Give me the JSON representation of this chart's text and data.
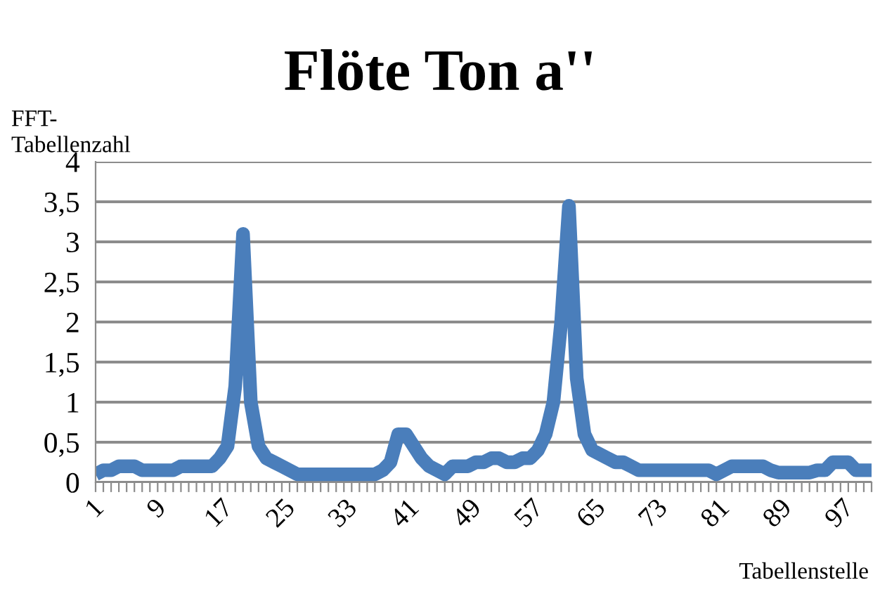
{
  "chart_data": {
    "type": "line",
    "title": "Flöte Ton a''",
    "xlabel": "Tabellenstelle",
    "ylabel": "FFT-\nTabellenzahl",
    "categories": [
      "1",
      null,
      null,
      null,
      null,
      null,
      null,
      null,
      "9",
      null,
      null,
      null,
      null,
      null,
      null,
      null,
      "17",
      null,
      null,
      null,
      null,
      null,
      null,
      null,
      "25",
      null,
      null,
      null,
      null,
      null,
      null,
      null,
      "33",
      null,
      null,
      null,
      null,
      null,
      null,
      null,
      "41",
      null,
      null,
      null,
      null,
      null,
      null,
      null,
      "49",
      null,
      null,
      null,
      null,
      null,
      null,
      null,
      "57",
      null,
      null,
      null,
      null,
      null,
      null,
      null,
      "65",
      null,
      null,
      null,
      null,
      null,
      null,
      null,
      "73",
      null,
      null,
      null,
      null,
      null,
      null,
      null,
      "81",
      null,
      null,
      null,
      null,
      null,
      null,
      null,
      "89",
      null,
      null,
      null,
      null,
      null,
      null,
      null,
      "97",
      null,
      null,
      null,
      null
    ],
    "series": [
      {
        "color": "#4a7ebb",
        "values": [
          0.1,
          0.15,
          0.15,
          0.2,
          0.2,
          0.2,
          0.15,
          0.15,
          0.15,
          0.15,
          0.15,
          0.2,
          0.2,
          0.2,
          0.2,
          0.2,
          0.3,
          0.45,
          1.2,
          3.1,
          1.0,
          0.45,
          0.3,
          0.25,
          0.2,
          0.15,
          0.1,
          0.1,
          0.1,
          0.1,
          0.1,
          0.1,
          0.1,
          0.1,
          0.1,
          0.1,
          0.1,
          0.15,
          0.25,
          0.6,
          0.6,
          0.45,
          0.3,
          0.2,
          0.15,
          0.1,
          0.2,
          0.2,
          0.2,
          0.25,
          0.25,
          0.3,
          0.3,
          0.25,
          0.25,
          0.3,
          0.3,
          0.4,
          0.6,
          1.0,
          2.0,
          3.45,
          1.3,
          0.6,
          0.4,
          0.35,
          0.3,
          0.25,
          0.25,
          0.2,
          0.15,
          0.15,
          0.15,
          0.15,
          0.15,
          0.15,
          0.15,
          0.15,
          0.15,
          0.15,
          0.1,
          0.15,
          0.2,
          0.2,
          0.2,
          0.2,
          0.2,
          0.15,
          0.12,
          0.12,
          0.12,
          0.12,
          0.12,
          0.15,
          0.15,
          0.25,
          0.25,
          0.25,
          0.15,
          0.15,
          0.15
        ]
      }
    ],
    "ylim": [
      0,
      4
    ],
    "yticks": [
      0,
      {
        "value": 0.5,
        "label": "0,5"
      },
      1,
      {
        "value": 1.5,
        "label": "1,5"
      },
      2,
      {
        "value": 2.5,
        "label": "2,5"
      },
      3,
      {
        "value": 3.5,
        "label": "3,5"
      },
      4
    ],
    "grid": "y",
    "legend": false,
    "marker": "none",
    "line_style": "solid"
  }
}
